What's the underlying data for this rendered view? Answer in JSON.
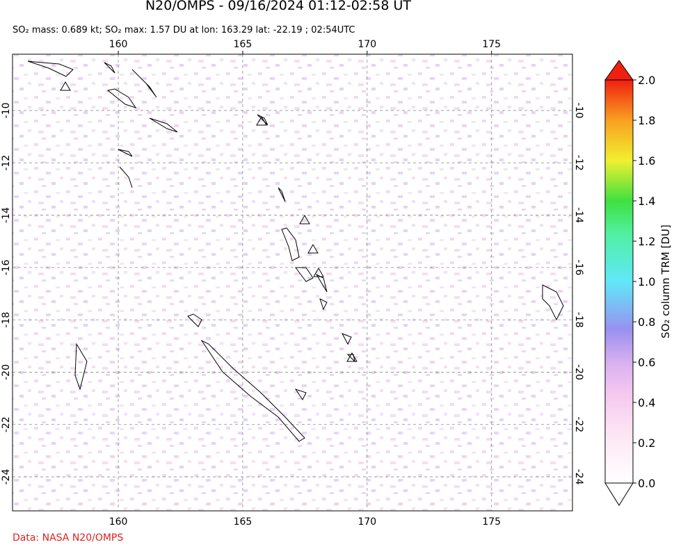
{
  "chart_data": {
    "type": "map",
    "title": "N20/OMPS - 09/16/2024 01:12-02:58 UT",
    "subtitle": "SO₂ mass: 0.689 kt; SO₂ max: 1.57 DU at lon: 163.29 lat: -22.19 ; 02:54UTC",
    "xlim": [
      155.75,
      178.25
    ],
    "ylim": [
      -25.3,
      -7.85
    ],
    "xticks": [
      160,
      165,
      170,
      175
    ],
    "yticks": [
      -10,
      -12,
      -14,
      -16,
      -18,
      -20,
      -22,
      -24
    ],
    "grid": true,
    "colorbar": {
      "label": "SO₂ column TRM [DU]",
      "lim": [
        0,
        2
      ],
      "ticks": [
        {
          "value": 0,
          "label": "0.0"
        },
        0.2,
        0.4,
        0.6,
        0.8,
        {
          "value": 1,
          "label": "1.0"
        },
        1.2,
        1.4,
        1.6,
        1.8,
        {
          "value": 2,
          "label": "2.0"
        }
      ]
    },
    "source": "Data: NASA N20/OMPS"
  }
}
